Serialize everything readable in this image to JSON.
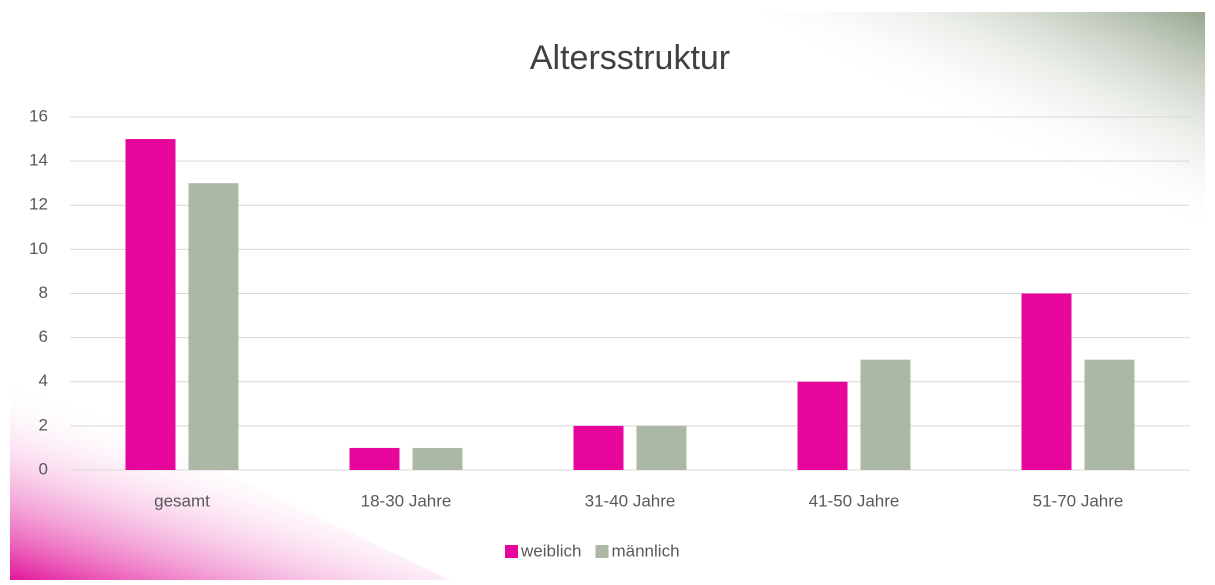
{
  "chart_data": {
    "type": "bar",
    "title": "Altersstruktur",
    "categories": [
      "gesamt",
      "18-30 Jahre",
      "31-40 Jahre",
      "41-50 Jahre",
      "51-70 Jahre"
    ],
    "series": [
      {
        "name": "weiblich",
        "color": "#e6069b",
        "values": [
          15,
          1,
          2,
          4,
          8
        ]
      },
      {
        "name": "männlich",
        "color": "#acb8a6",
        "values": [
          13,
          1,
          2,
          5,
          5
        ]
      }
    ],
    "ylim": [
      0,
      16
    ],
    "yticks": [
      0,
      2,
      4,
      6,
      8,
      10,
      12,
      14,
      16
    ],
    "grid": true,
    "legend": "bottom"
  }
}
